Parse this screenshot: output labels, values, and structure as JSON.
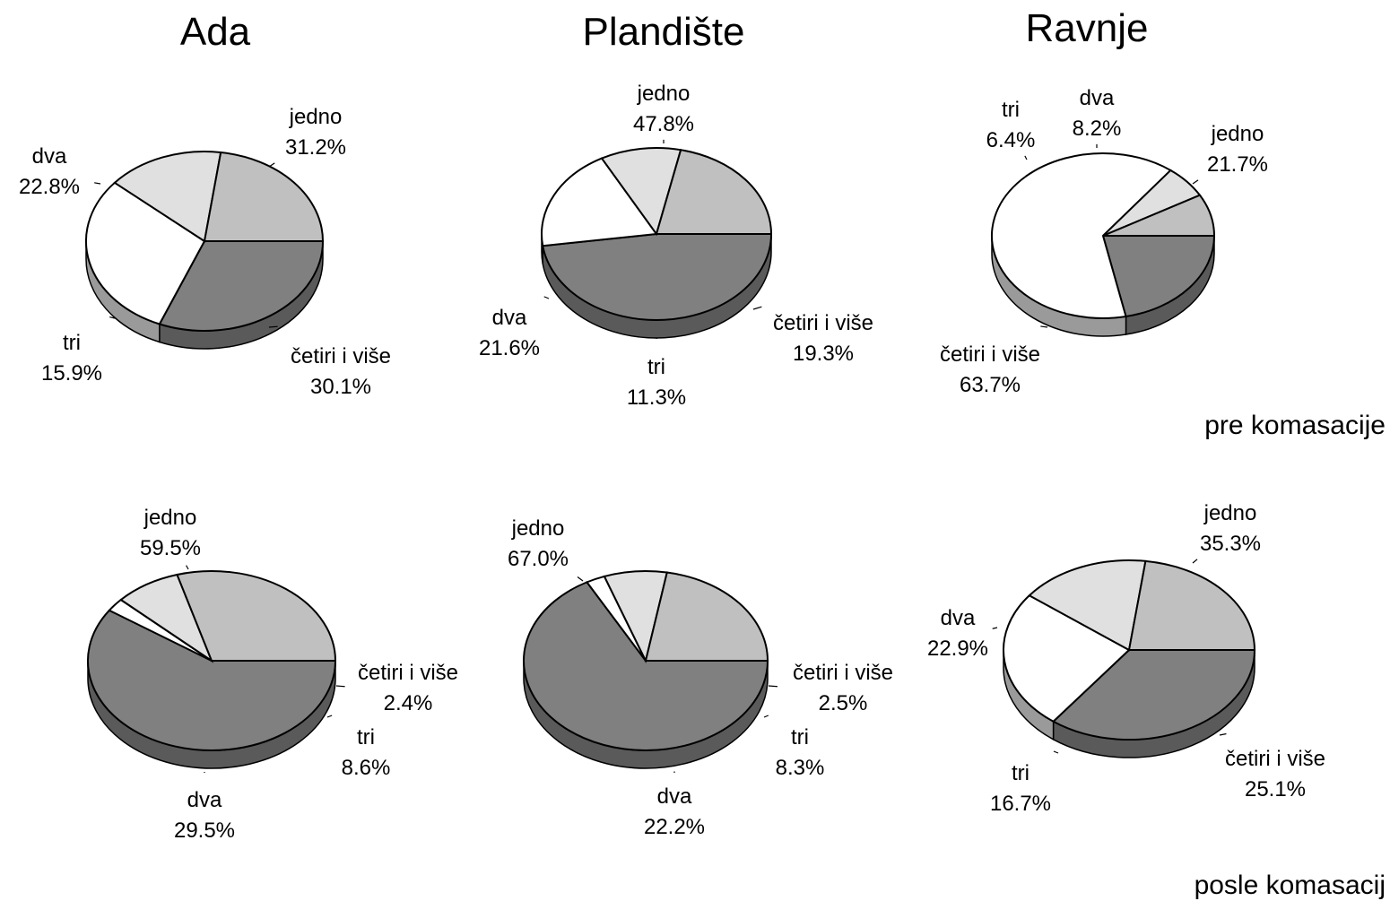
{
  "column_titles": [
    "Ada",
    "Plandište",
    "Ravnje"
  ],
  "row_labels": [
    "pre komasacije",
    "posle komasacij"
  ],
  "chart_data": [
    {
      "type": "pie",
      "column": "Ada",
      "row": "pre komasacije",
      "slices": [
        {
          "label": "jedno",
          "value": 31.2,
          "value_text": "31.2%",
          "color": "#808080"
        },
        {
          "label": "četiri i više",
          "value": 30.1,
          "value_text": "30.1%",
          "color": "#ffffff"
        },
        {
          "label": "tri",
          "value": 15.9,
          "value_text": "15.9%",
          "color": "#e0e0e0"
        },
        {
          "label": "dva",
          "value": 22.8,
          "value_text": "22.8%",
          "color": "#c0c0c0"
        }
      ]
    },
    {
      "type": "pie",
      "column": "Plandište",
      "row": "pre komasacije",
      "slices": [
        {
          "label": "jedno",
          "value": 47.8,
          "value_text": "47.8%",
          "color": "#808080"
        },
        {
          "label": "četiri i više",
          "value": 19.3,
          "value_text": "19.3%",
          "color": "#ffffff"
        },
        {
          "label": "tri",
          "value": 11.3,
          "value_text": "11.3%",
          "color": "#e0e0e0"
        },
        {
          "label": "dva",
          "value": 21.6,
          "value_text": "21.6%",
          "color": "#c0c0c0"
        }
      ]
    },
    {
      "type": "pie",
      "column": "Ravnje",
      "row": "pre komasacije",
      "slices": [
        {
          "label": "jedno",
          "value": 21.7,
          "value_text": "21.7%",
          "color": "#808080"
        },
        {
          "label": "četiri i više",
          "value": 63.7,
          "value_text": "63.7%",
          "color": "#ffffff"
        },
        {
          "label": "tri",
          "value": 6.4,
          "value_text": "6.4%",
          "color": "#e0e0e0"
        },
        {
          "label": "dva",
          "value": 8.2,
          "value_text": "8.2%",
          "color": "#c0c0c0"
        }
      ]
    },
    {
      "type": "pie",
      "column": "Ada",
      "row": "posle komasacij",
      "slices": [
        {
          "label": "jedno",
          "value": 59.5,
          "value_text": "59.5%",
          "color": "#808080"
        },
        {
          "label": "četiri i više",
          "value": 2.4,
          "value_text": "2.4%",
          "color": "#ffffff"
        },
        {
          "label": "tri",
          "value": 8.6,
          "value_text": "8.6%",
          "color": "#e0e0e0"
        },
        {
          "label": "dva",
          "value": 29.5,
          "value_text": "29.5%",
          "color": "#c0c0c0"
        }
      ]
    },
    {
      "type": "pie",
      "column": "Plandište",
      "row": "posle komasacij",
      "slices": [
        {
          "label": "jedno",
          "value": 67.0,
          "value_text": "67.0%",
          "color": "#808080"
        },
        {
          "label": "četiri i više",
          "value": 2.5,
          "value_text": "2.5%",
          "color": "#ffffff"
        },
        {
          "label": "tri",
          "value": 8.3,
          "value_text": "8.3%",
          "color": "#e0e0e0"
        },
        {
          "label": "dva",
          "value": 22.2,
          "value_text": "22.2%",
          "color": "#c0c0c0"
        }
      ]
    },
    {
      "type": "pie",
      "column": "Ravnje",
      "row": "posle komasacij",
      "slices": [
        {
          "label": "jedno",
          "value": 35.3,
          "value_text": "35.3%",
          "color": "#808080"
        },
        {
          "label": "četiri i više",
          "value": 25.1,
          "value_text": "25.1%",
          "color": "#ffffff"
        },
        {
          "label": "tri",
          "value": 16.7,
          "value_text": "16.7%",
          "color": "#e0e0e0"
        },
        {
          "label": "dva",
          "value": 22.9,
          "value_text": "22.9%",
          "color": "#c0c0c0"
        }
      ]
    }
  ]
}
